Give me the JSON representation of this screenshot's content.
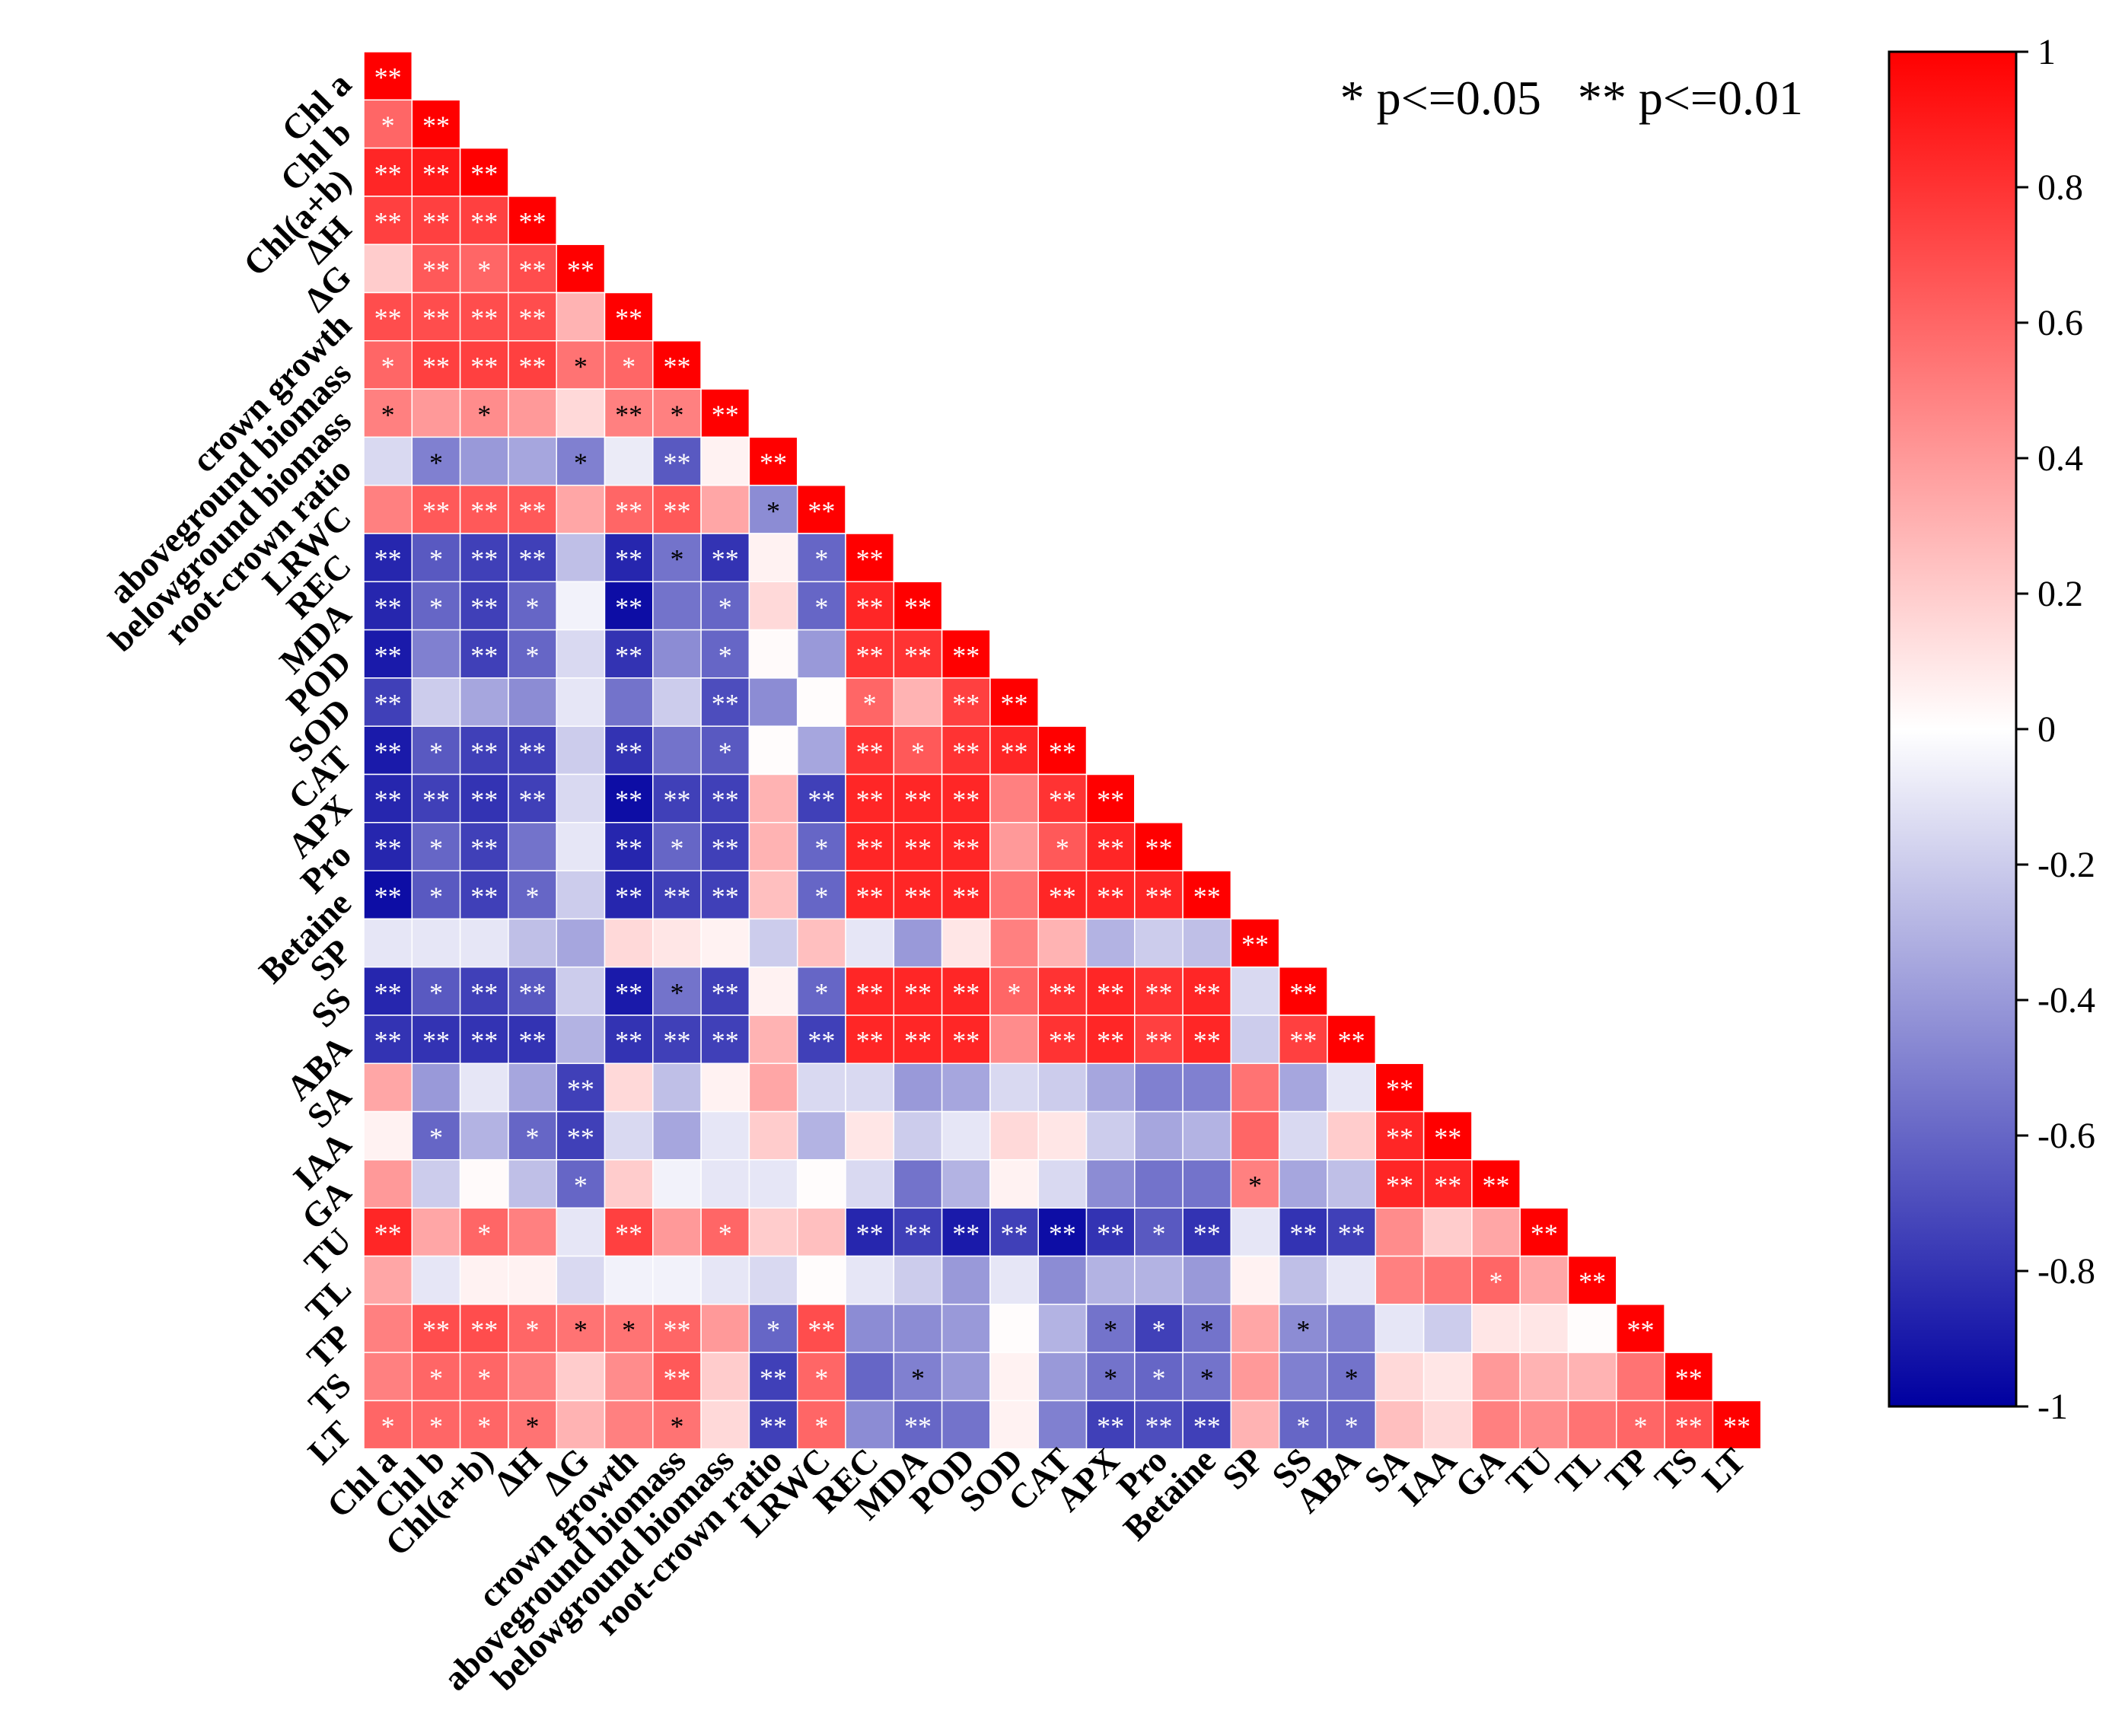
{
  "chart_data": {
    "type": "heatmap",
    "layout": "lower-triangle",
    "significance_note": "* p<=0.05   ** p<=0.01",
    "variables": [
      "Chl a",
      "Chl b",
      "Chl(a+b)",
      "ΔH",
      "ΔG",
      "crown growth",
      "aboveground biomass",
      "belowground biomass",
      "root-crown ratio",
      "LRWC",
      "REC",
      "MDA",
      "POD",
      "SOD",
      "CAT",
      "APX",
      "Pro",
      "Betaine",
      "SP",
      "SS",
      "ABA",
      "SA",
      "IAA",
      "GA",
      "TU",
      "TL",
      "TP",
      "TS",
      "LT"
    ],
    "correlations": [
      [
        1
      ],
      [
        0.6,
        1
      ],
      [
        0.85,
        0.9,
        1
      ],
      [
        0.75,
        0.75,
        0.75,
        1
      ],
      [
        0.2,
        0.65,
        0.6,
        0.7,
        1
      ],
      [
        0.7,
        0.7,
        0.7,
        0.7,
        0.3,
        1
      ],
      [
        0.6,
        0.75,
        0.75,
        0.75,
        0.55,
        0.6,
        1
      ],
      [
        0.5,
        0.4,
        0.45,
        0.4,
        0.15,
        0.5,
        0.5,
        1
      ],
      [
        -0.15,
        -0.5,
        -0.4,
        -0.35,
        -0.5,
        -0.08,
        -0.65,
        0.05,
        1
      ],
      [
        0.5,
        0.65,
        0.65,
        0.65,
        0.35,
        0.6,
        0.65,
        0.35,
        -0.45,
        1
      ],
      [
        -0.85,
        -0.65,
        -0.75,
        -0.75,
        -0.25,
        -0.85,
        -0.55,
        -0.8,
        0.05,
        -0.6,
        1
      ],
      [
        -0.85,
        -0.6,
        -0.75,
        -0.6,
        -0.05,
        -0.95,
        -0.55,
        -0.6,
        0.15,
        -0.6,
        0.85,
        1
      ],
      [
        -0.9,
        -0.5,
        -0.75,
        -0.6,
        -0.15,
        -0.8,
        -0.45,
        -0.6,
        0.02,
        -0.4,
        0.8,
        0.8,
        1
      ],
      [
        -0.75,
        -0.2,
        -0.35,
        -0.45,
        -0.1,
        -0.55,
        -0.2,
        -0.7,
        -0.45,
        0.01,
        0.6,
        0.3,
        0.75,
        1
      ],
      [
        -0.9,
        -0.65,
        -0.75,
        -0.75,
        -0.2,
        -0.8,
        -0.55,
        -0.65,
        0.01,
        -0.35,
        0.8,
        0.65,
        0.8,
        0.85,
        1
      ],
      [
        -0.85,
        -0.75,
        -0.8,
        -0.75,
        -0.15,
        -0.95,
        -0.75,
        -0.75,
        0.3,
        -0.75,
        0.85,
        0.85,
        0.85,
        0.5,
        0.8,
        1
      ],
      [
        -0.85,
        -0.6,
        -0.75,
        -0.55,
        -0.1,
        -0.85,
        -0.6,
        -0.75,
        0.3,
        -0.6,
        0.85,
        0.85,
        0.85,
        0.4,
        0.65,
        0.85,
        1
      ],
      [
        -0.95,
        -0.65,
        -0.75,
        -0.6,
        -0.2,
        -0.85,
        -0.75,
        -0.75,
        0.25,
        -0.6,
        0.85,
        0.85,
        0.85,
        0.55,
        0.85,
        0.85,
        0.85,
        1
      ],
      [
        -0.1,
        -0.1,
        -0.1,
        -0.25,
        -0.35,
        0.15,
        0.1,
        0.05,
        -0.2,
        0.25,
        -0.1,
        -0.4,
        0.1,
        0.5,
        0.3,
        -0.3,
        -0.2,
        -0.25,
        1
      ],
      [
        -0.85,
        -0.65,
        -0.75,
        -0.65,
        -0.2,
        -0.9,
        -0.55,
        -0.75,
        0.05,
        -0.6,
        0.85,
        0.85,
        0.85,
        0.6,
        0.8,
        0.85,
        0.8,
        0.85,
        -0.15,
        1
      ],
      [
        -0.8,
        -0.8,
        -0.8,
        -0.8,
        -0.3,
        -0.8,
        -0.75,
        -0.75,
        0.3,
        -0.75,
        0.85,
        0.85,
        0.85,
        0.45,
        0.8,
        0.85,
        0.75,
        0.85,
        -0.2,
        0.75,
        1
      ],
      [
        0.35,
        -0.4,
        -0.1,
        -0.35,
        -0.75,
        0.15,
        -0.25,
        0.05,
        0.35,
        -0.15,
        -0.15,
        -0.4,
        -0.35,
        -0.15,
        -0.2,
        -0.35,
        -0.5,
        -0.5,
        0.55,
        -0.35,
        -0.1,
        1
      ],
      [
        0.05,
        -0.6,
        -0.3,
        -0.6,
        -0.75,
        -0.15,
        -0.35,
        -0.1,
        0.2,
        -0.3,
        0.1,
        -0.2,
        -0.1,
        0.15,
        0.1,
        -0.2,
        -0.35,
        -0.3,
        0.6,
        -0.15,
        0.2,
        0.85,
        1
      ],
      [
        0.4,
        -0.2,
        0.02,
        -0.25,
        -0.6,
        0.2,
        -0.05,
        -0.1,
        -0.1,
        0.01,
        -0.15,
        -0.55,
        -0.3,
        0.05,
        -0.15,
        -0.45,
        -0.55,
        -0.55,
        0.5,
        -0.35,
        -0.25,
        0.85,
        0.85,
        1
      ],
      [
        0.85,
        0.35,
        0.6,
        0.5,
        -0.1,
        0.75,
        0.4,
        0.6,
        0.2,
        0.25,
        -0.85,
        -0.75,
        -0.9,
        -0.75,
        -0.95,
        -0.8,
        -0.65,
        -0.8,
        -0.1,
        -0.8,
        -0.75,
        0.45,
        0.2,
        0.35,
        1
      ],
      [
        0.35,
        -0.1,
        0.05,
        0.05,
        -0.15,
        -0.05,
        -0.05,
        -0.1,
        -0.15,
        0.01,
        -0.1,
        -0.2,
        -0.4,
        -0.1,
        -0.45,
        -0.3,
        -0.3,
        -0.4,
        0.05,
        -0.25,
        -0.1,
        0.5,
        0.55,
        0.6,
        0.35,
        1
      ],
      [
        0.5,
        0.7,
        0.7,
        0.6,
        0.55,
        0.55,
        0.6,
        0.4,
        -0.6,
        0.7,
        -0.45,
        -0.45,
        -0.4,
        0.01,
        -0.3,
        -0.55,
        -0.75,
        -0.55,
        0.35,
        -0.45,
        -0.5,
        -0.1,
        -0.2,
        0.1,
        0.1,
        0.01,
        1
      ],
      [
        0.5,
        0.6,
        0.6,
        0.5,
        0.2,
        0.45,
        0.65,
        0.2,
        -0.75,
        0.6,
        -0.6,
        -0.5,
        -0.4,
        0.05,
        -0.4,
        -0.55,
        -0.6,
        -0.55,
        0.4,
        -0.5,
        -0.55,
        0.15,
        0.1,
        0.4,
        0.3,
        0.3,
        0.55,
        1
      ],
      [
        0.6,
        0.6,
        0.6,
        0.55,
        0.3,
        0.5,
        0.55,
        0.15,
        -0.75,
        0.6,
        -0.45,
        -0.6,
        -0.55,
        0.05,
        -0.5,
        -0.75,
        -0.7,
        -0.75,
        0.3,
        -0.6,
        -0.6,
        0.25,
        0.15,
        0.5,
        0.45,
        0.55,
        0.6,
        0.7,
        1
      ]
    ],
    "significance": [
      [
        "**"
      ],
      [
        "*",
        "**"
      ],
      [
        "**",
        "**",
        "**"
      ],
      [
        "**",
        "**",
        "**",
        "**"
      ],
      [
        "",
        "**",
        "*",
        "**",
        "**"
      ],
      [
        "**",
        "**",
        "**",
        "**",
        "",
        "**"
      ],
      [
        "*",
        "**",
        "**",
        "**",
        "*",
        "*",
        "**"
      ],
      [
        "*",
        "",
        "*",
        "",
        "",
        "**",
        "*",
        "**"
      ],
      [
        "",
        "*",
        "",
        "",
        "*",
        "",
        "**",
        "",
        "**"
      ],
      [
        "",
        "**",
        "**",
        "**",
        "",
        "**",
        "**",
        "",
        "*",
        "**"
      ],
      [
        "**",
        "*",
        "**",
        "**",
        "",
        "**",
        "*",
        "**",
        "",
        "*",
        "**"
      ],
      [
        "**",
        "*",
        "**",
        "*",
        "",
        "**",
        "",
        "*",
        "",
        "*",
        "**",
        "**"
      ],
      [
        "**",
        "",
        "**",
        "*",
        "",
        "**",
        "",
        "*",
        "",
        "",
        "**",
        "**",
        "**"
      ],
      [
        "**",
        "",
        "",
        "",
        "",
        "",
        "",
        "**",
        "",
        "",
        "*",
        "",
        "**",
        "**"
      ],
      [
        "**",
        "*",
        "**",
        "**",
        "",
        "**",
        "",
        "*",
        "",
        "",
        "**",
        "*",
        "**",
        "**",
        "**"
      ],
      [
        "**",
        "**",
        "**",
        "**",
        "",
        "**",
        "**",
        "**",
        "",
        "**",
        "**",
        "**",
        "**",
        "",
        "**",
        "**"
      ],
      [
        "**",
        "*",
        "**",
        "",
        "",
        "**",
        "*",
        "**",
        "",
        "*",
        "**",
        "**",
        "**",
        "",
        "*",
        "**",
        "**"
      ],
      [
        "**",
        "*",
        "**",
        "*",
        "",
        "**",
        "**",
        "**",
        "",
        "*",
        "**",
        "**",
        "**",
        "",
        "**",
        "**",
        "**",
        "**"
      ],
      [
        "",
        "",
        "",
        "",
        "",
        "",
        "",
        "",
        "",
        "",
        "",
        "",
        "",
        "",
        "",
        "",
        "",
        "",
        "**"
      ],
      [
        "**",
        "*",
        "**",
        "**",
        "",
        "**",
        "*",
        "**",
        "",
        "*",
        "**",
        "**",
        "**",
        "*",
        "**",
        "**",
        "**",
        "**",
        "",
        "**"
      ],
      [
        "**",
        "**",
        "**",
        "**",
        "",
        "**",
        "**",
        "**",
        "",
        "**",
        "**",
        "**",
        "**",
        "",
        "**",
        "**",
        "**",
        "**",
        "",
        "**",
        "**"
      ],
      [
        "",
        "",
        "",
        "",
        "**",
        "",
        "",
        "",
        "",
        "",
        "",
        "",
        "",
        "",
        "",
        "",
        "",
        "",
        "",
        "",
        "",
        "**"
      ],
      [
        "",
        "*",
        "",
        "*",
        "**",
        "",
        "",
        "",
        "",
        "",
        "",
        "",
        "",
        "",
        "",
        "",
        "",
        "",
        "",
        "",
        "",
        "**",
        "**"
      ],
      [
        "",
        "",
        "",
        "",
        "*",
        "",
        "",
        "",
        "",
        "",
        "",
        "",
        "",
        "",
        "",
        "",
        "",
        "",
        "*",
        "",
        "",
        "**",
        "**",
        "**"
      ],
      [
        "**",
        "",
        "*",
        "",
        "",
        "**",
        "",
        "*",
        "",
        "",
        "**",
        "**",
        "**",
        "**",
        "**",
        "**",
        "*",
        "**",
        "",
        "**",
        "**",
        "",
        "",
        "",
        "**"
      ],
      [
        "",
        "",
        "",
        "",
        "",
        "",
        "",
        "",
        "",
        "",
        "",
        "",
        "",
        "",
        "",
        "",
        "",
        "",
        "",
        "",
        "",
        "",
        "",
        "*",
        "",
        "**"
      ],
      [
        "",
        "**",
        "**",
        "*",
        "*",
        "*",
        "**",
        "",
        "*",
        "**",
        "",
        "",
        "",
        "",
        "",
        "*",
        "*",
        "*",
        "",
        "*",
        "",
        "",
        "",
        "",
        "",
        "",
        "**"
      ],
      [
        "",
        "*",
        "*",
        "",
        "",
        "",
        "**",
        "",
        "**",
        "*",
        "",
        "*",
        "",
        "",
        "",
        "*",
        "*",
        "*",
        "",
        "",
        "*",
        "",
        "",
        "",
        "",
        "",
        "",
        "**"
      ],
      [
        "*",
        "*",
        "*",
        "*",
        "",
        "",
        "*",
        "",
        "**",
        "*",
        "",
        "**",
        "",
        "",
        "",
        "**",
        "**",
        "**",
        "",
        "*",
        "*",
        "",
        "",
        "",
        "",
        "",
        "*",
        "**",
        "**"
      ]
    ],
    "colorbar": {
      "min": -1,
      "max": 1,
      "ticks": [
        "1",
        "0.8",
        "0.6",
        "0.4",
        "0.2",
        "0",
        "-0.2",
        "-0.4",
        "-0.6",
        "-0.8",
        "-1"
      ],
      "colors": {
        "negative": "#0000a0",
        "zero": "#ffffff",
        "positive": "#ff0000"
      }
    }
  }
}
